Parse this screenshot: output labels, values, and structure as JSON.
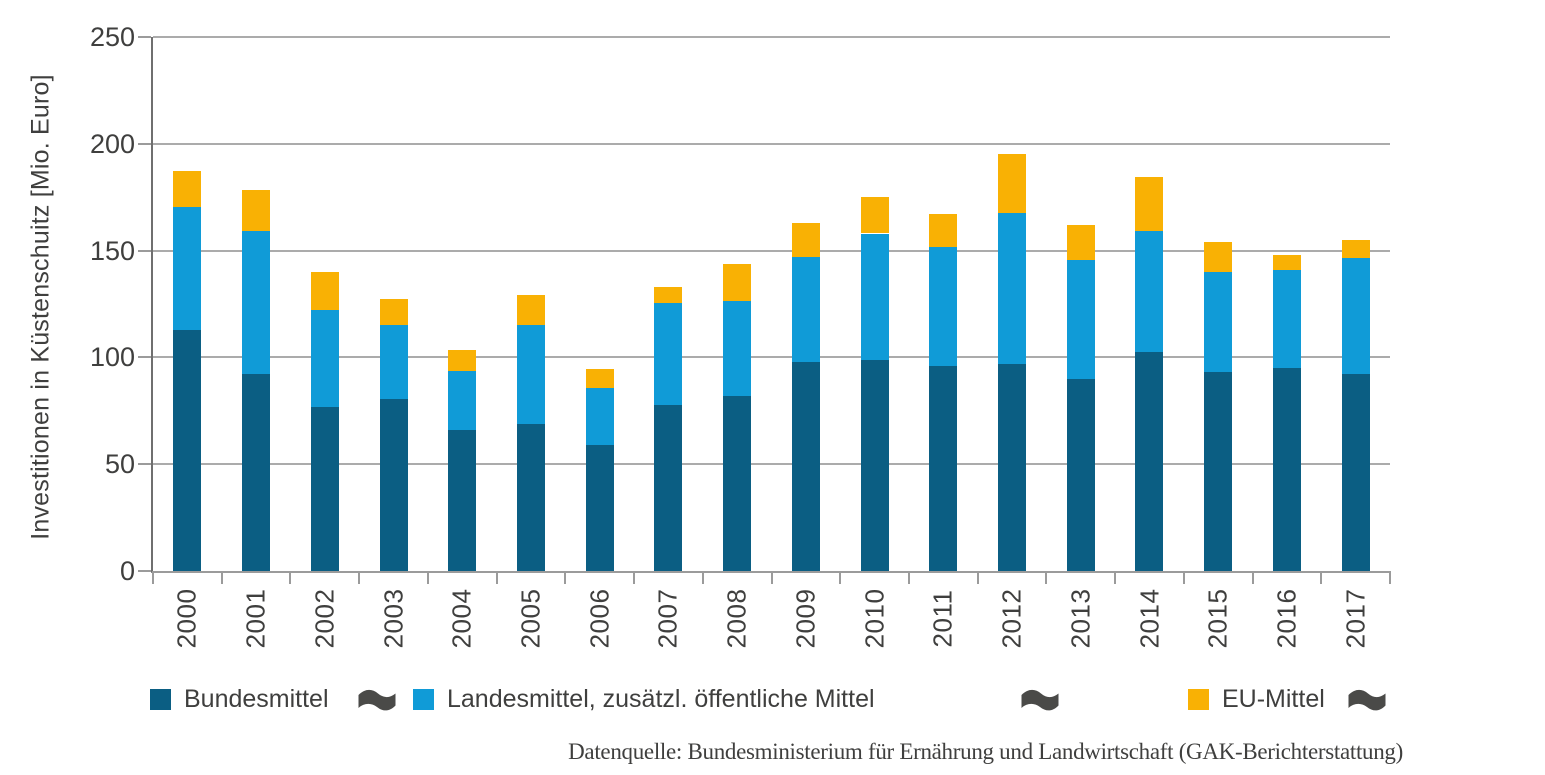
{
  "chart_data": {
    "type": "bar",
    "stacked": true,
    "title": "",
    "xlabel": "",
    "ylabel": "Investitionen in Küstenschuitz [Mio. Euro]",
    "ylim": [
      0,
      250
    ],
    "yticks": [
      0,
      50,
      100,
      150,
      200,
      250
    ],
    "grid": true,
    "legend_position": "bottom",
    "categories": [
      "2000",
      "2001",
      "2002",
      "2003",
      "2004",
      "2005",
      "2006",
      "2007",
      "2008",
      "2009",
      "2010",
      "2011",
      "2012",
      "2013",
      "2014",
      "2015",
      "2016",
      "2017"
    ],
    "series": [
      {
        "name": "Bundesmittel",
        "color": "#0b5e83",
        "values": [
          113,
          92,
          77,
          80.5,
          66,
          69,
          59,
          77.5,
          82,
          98,
          99,
          96,
          97,
          90,
          102.5,
          93,
          95,
          92
        ]
      },
      {
        "name": "Landesmittel, zusätzl. öffentliche Mittel",
        "color": "#109bd7",
        "values": [
          57.5,
          67,
          45,
          34.5,
          27.5,
          46,
          26.5,
          48,
          44.5,
          49,
          59,
          55.5,
          70.5,
          55.5,
          56.5,
          47,
          46,
          54.5
        ]
      },
      {
        "name": "EU-Mittel",
        "color": "#f9b104",
        "values": [
          17,
          19.5,
          18,
          12.5,
          10,
          14,
          9,
          7.5,
          17,
          16,
          17,
          15.5,
          27.5,
          16.5,
          25.5,
          14,
          7,
          8.5
        ]
      }
    ],
    "source": "Datenquelle: Bundesministerium für Ernährung und Landwirtschaft (GAK-Berichterstattung)"
  },
  "legend": {
    "flag_icon_color": "#4a4a48"
  }
}
